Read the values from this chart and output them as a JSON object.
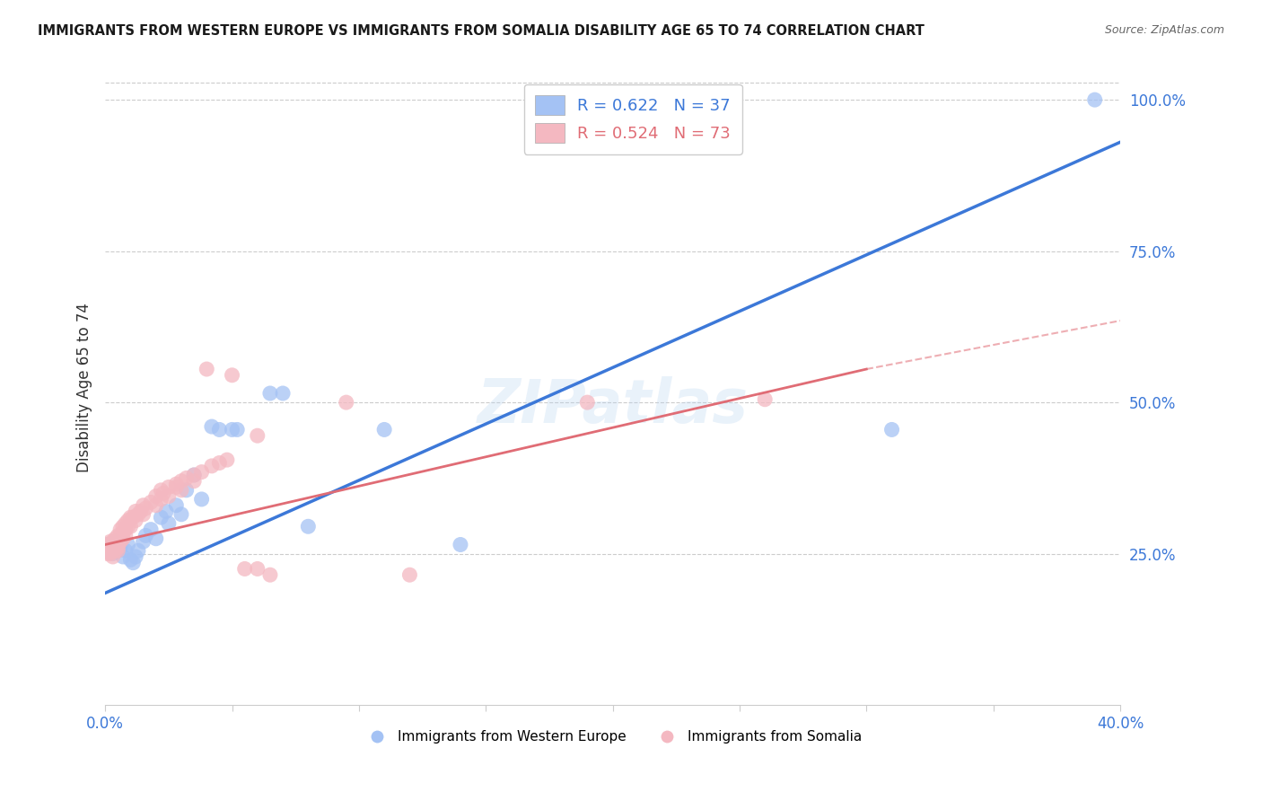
{
  "title": "IMMIGRANTS FROM WESTERN EUROPE VS IMMIGRANTS FROM SOMALIA DISABILITY AGE 65 TO 74 CORRELATION CHART",
  "source": "Source: ZipAtlas.com",
  "ylabel": "Disability Age 65 to 74",
  "x_min": 0.0,
  "x_max": 0.4,
  "y_min": 0.0,
  "y_max": 1.05,
  "x_ticks": [
    0.0,
    0.05,
    0.1,
    0.15,
    0.2,
    0.25,
    0.3,
    0.35,
    0.4
  ],
  "y_ticks": [
    0.25,
    0.5,
    0.75,
    1.0
  ],
  "y_tick_labels": [
    "25.0%",
    "50.0%",
    "75.0%",
    "100.0%"
  ],
  "legend_r1": "R = 0.622",
  "legend_n1": "N = 37",
  "legend_r2": "R = 0.524",
  "legend_n2": "N = 73",
  "color_blue": "#a4c2f4",
  "color_pink": "#f4b8c1",
  "line_color_blue": "#3c78d8",
  "line_color_pink": "#e06c75",
  "watermark": "ZIPatlas",
  "blue_scatter": [
    [
      0.001,
      0.265
    ],
    [
      0.001,
      0.255
    ],
    [
      0.002,
      0.26
    ],
    [
      0.003,
      0.25
    ],
    [
      0.004,
      0.27
    ],
    [
      0.005,
      0.255
    ],
    [
      0.006,
      0.26
    ],
    [
      0.007,
      0.245
    ],
    [
      0.008,
      0.255
    ],
    [
      0.009,
      0.265
    ],
    [
      0.01,
      0.24
    ],
    [
      0.011,
      0.235
    ],
    [
      0.012,
      0.245
    ],
    [
      0.013,
      0.255
    ],
    [
      0.015,
      0.27
    ],
    [
      0.016,
      0.28
    ],
    [
      0.018,
      0.29
    ],
    [
      0.02,
      0.275
    ],
    [
      0.022,
      0.31
    ],
    [
      0.024,
      0.32
    ],
    [
      0.025,
      0.3
    ],
    [
      0.028,
      0.33
    ],
    [
      0.03,
      0.315
    ],
    [
      0.032,
      0.355
    ],
    [
      0.035,
      0.38
    ],
    [
      0.038,
      0.34
    ],
    [
      0.042,
      0.46
    ],
    [
      0.045,
      0.455
    ],
    [
      0.05,
      0.455
    ],
    [
      0.052,
      0.455
    ],
    [
      0.065,
      0.515
    ],
    [
      0.07,
      0.515
    ],
    [
      0.08,
      0.295
    ],
    [
      0.11,
      0.455
    ],
    [
      0.14,
      0.265
    ],
    [
      0.31,
      0.455
    ],
    [
      0.39,
      1.0
    ]
  ],
  "pink_scatter": [
    [
      0.001,
      0.265
    ],
    [
      0.001,
      0.255
    ],
    [
      0.001,
      0.26
    ],
    [
      0.001,
      0.25
    ],
    [
      0.002,
      0.27
    ],
    [
      0.002,
      0.255
    ],
    [
      0.002,
      0.26
    ],
    [
      0.002,
      0.25
    ],
    [
      0.002,
      0.265
    ],
    [
      0.003,
      0.245
    ],
    [
      0.003,
      0.255
    ],
    [
      0.003,
      0.265
    ],
    [
      0.003,
      0.26
    ],
    [
      0.003,
      0.27
    ],
    [
      0.004,
      0.275
    ],
    [
      0.004,
      0.265
    ],
    [
      0.004,
      0.255
    ],
    [
      0.004,
      0.26
    ],
    [
      0.005,
      0.28
    ],
    [
      0.005,
      0.27
    ],
    [
      0.005,
      0.265
    ],
    [
      0.005,
      0.255
    ],
    [
      0.005,
      0.26
    ],
    [
      0.006,
      0.29
    ],
    [
      0.006,
      0.28
    ],
    [
      0.006,
      0.27
    ],
    [
      0.007,
      0.295
    ],
    [
      0.007,
      0.285
    ],
    [
      0.007,
      0.275
    ],
    [
      0.008,
      0.3
    ],
    [
      0.008,
      0.29
    ],
    [
      0.008,
      0.28
    ],
    [
      0.009,
      0.305
    ],
    [
      0.009,
      0.295
    ],
    [
      0.01,
      0.31
    ],
    [
      0.01,
      0.295
    ],
    [
      0.011,
      0.31
    ],
    [
      0.012,
      0.32
    ],
    [
      0.012,
      0.305
    ],
    [
      0.013,
      0.315
    ],
    [
      0.014,
      0.32
    ],
    [
      0.015,
      0.33
    ],
    [
      0.015,
      0.315
    ],
    [
      0.016,
      0.325
    ],
    [
      0.018,
      0.335
    ],
    [
      0.02,
      0.345
    ],
    [
      0.02,
      0.33
    ],
    [
      0.022,
      0.355
    ],
    [
      0.022,
      0.34
    ],
    [
      0.023,
      0.35
    ],
    [
      0.025,
      0.36
    ],
    [
      0.025,
      0.345
    ],
    [
      0.028,
      0.365
    ],
    [
      0.028,
      0.36
    ],
    [
      0.03,
      0.37
    ],
    [
      0.03,
      0.355
    ],
    [
      0.032,
      0.375
    ],
    [
      0.035,
      0.38
    ],
    [
      0.035,
      0.37
    ],
    [
      0.038,
      0.385
    ],
    [
      0.04,
      0.555
    ],
    [
      0.042,
      0.395
    ],
    [
      0.045,
      0.4
    ],
    [
      0.048,
      0.405
    ],
    [
      0.055,
      0.225
    ],
    [
      0.06,
      0.225
    ],
    [
      0.065,
      0.215
    ],
    [
      0.095,
      0.5
    ],
    [
      0.12,
      0.215
    ],
    [
      0.19,
      0.5
    ],
    [
      0.26,
      0.505
    ],
    [
      0.05,
      0.545
    ],
    [
      0.06,
      0.445
    ]
  ],
  "blue_line": [
    0.0,
    0.185,
    0.4,
    0.93
  ],
  "pink_line": [
    0.0,
    0.265,
    0.3,
    0.555
  ],
  "pink_dashed": [
    0.3,
    0.555,
    0.4,
    0.635
  ],
  "grid_color": "#cccccc",
  "tick_color_blue": "#3c78d8"
}
